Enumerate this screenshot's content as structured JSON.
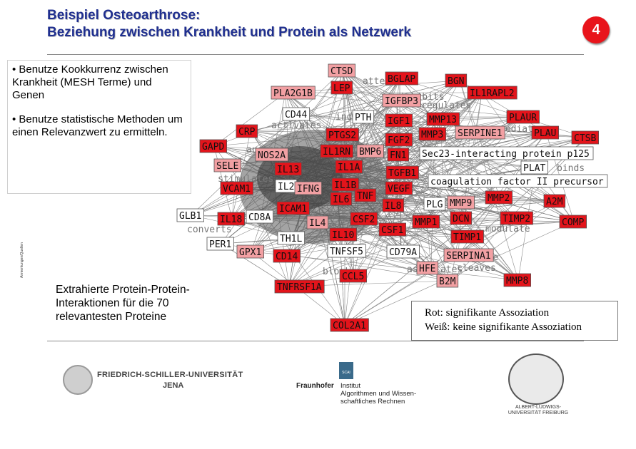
{
  "title": {
    "line1": "Beispiel Osteoarthrose:",
    "line2": "Beziehung zwischen Krankheit und Protein als Netzwerk"
  },
  "slide_number": "4",
  "bullets": [
    "• Benutze Kookkurrenz zwischen Krankheit (MESH Terme) und Genen",
    "• Benutze statistische Methoden um einen Relevanzwert zu ermitteln."
  ],
  "side_note": "Anmerkungen/Quellen",
  "extract_text": [
    "Extrahierte Protein-Protein-",
    "Interaktionen für die 70",
    "relevantesten Proteine"
  ],
  "legend": {
    "red": "Rot: signifikante Assoziation",
    "white": "Weiß: keine signifikante Assoziation"
  },
  "colors": {
    "title": "#1f2f8f",
    "badge": "#e8141b",
    "node_red": "#e3141b",
    "node_light": "#f2a0a3",
    "node_white": "#ffffff"
  },
  "network": {
    "nodes": [
      {
        "label": "CTSD",
        "color": "light"
      },
      {
        "label": "BGLAP",
        "color": "red"
      },
      {
        "label": "BGN",
        "color": "red"
      },
      {
        "label": "PLA2G1B",
        "color": "light"
      },
      {
        "label": "LEP",
        "color": "red"
      },
      {
        "label": "IGFBP3",
        "color": "light"
      },
      {
        "label": "IL1RAPL2",
        "color": "red"
      },
      {
        "label": "CD44",
        "color": "white"
      },
      {
        "label": "PTH",
        "color": "white"
      },
      {
        "label": "IGF1",
        "color": "red"
      },
      {
        "label": "MMP13",
        "color": "red"
      },
      {
        "label": "PLAUR",
        "color": "red"
      },
      {
        "label": "CRP",
        "color": "red"
      },
      {
        "label": "PTGS2",
        "color": "red"
      },
      {
        "label": "FGF2",
        "color": "red"
      },
      {
        "label": "MMP3",
        "color": "red"
      },
      {
        "label": "SERPINE1",
        "color": "light"
      },
      {
        "label": "PLAU",
        "color": "red"
      },
      {
        "label": "CTSB",
        "color": "red"
      },
      {
        "label": "GAPD",
        "color": "red"
      },
      {
        "label": "NOS2A",
        "color": "light"
      },
      {
        "label": "IL1RN",
        "color": "red"
      },
      {
        "label": "BMP6",
        "color": "light"
      },
      {
        "label": "FN1",
        "color": "red"
      },
      {
        "label": "Sec23-interacting protein p125",
        "color": "white"
      },
      {
        "label": "SELE",
        "color": "light"
      },
      {
        "label": "IL13",
        "color": "red"
      },
      {
        "label": "IL1A",
        "color": "red"
      },
      {
        "label": "TGFB1",
        "color": "red"
      },
      {
        "label": "PLAT",
        "color": "white"
      },
      {
        "label": "coagulation factor II precursor",
        "color": "white"
      },
      {
        "label": "VCAM1",
        "color": "red"
      },
      {
        "label": "IL2",
        "color": "white"
      },
      {
        "label": "IFNG",
        "color": "light"
      },
      {
        "label": "IL1B",
        "color": "red"
      },
      {
        "label": "IL6",
        "color": "red"
      },
      {
        "label": "TNF",
        "color": "red"
      },
      {
        "label": "VEGF",
        "color": "red"
      },
      {
        "label": "MMP2",
        "color": "red"
      },
      {
        "label": "A2M",
        "color": "red"
      },
      {
        "label": "ICAM1",
        "color": "red"
      },
      {
        "label": "IL8",
        "color": "red"
      },
      {
        "label": "PLG",
        "color": "white"
      },
      {
        "label": "MMP9",
        "color": "light"
      },
      {
        "label": "GLB1",
        "color": "white"
      },
      {
        "label": "IL18",
        "color": "red"
      },
      {
        "label": "CD8A",
        "color": "white"
      },
      {
        "label": "IL4",
        "color": "light"
      },
      {
        "label": "CSF2",
        "color": "red"
      },
      {
        "label": "MMP1",
        "color": "red"
      },
      {
        "label": "DCN",
        "color": "red"
      },
      {
        "label": "TIMP2",
        "color": "red"
      },
      {
        "label": "COMP",
        "color": "red"
      },
      {
        "label": "TH1L",
        "color": "white"
      },
      {
        "label": "CSF1",
        "color": "red"
      },
      {
        "label": "TIMP1",
        "color": "red"
      },
      {
        "label": "PER1",
        "color": "white"
      },
      {
        "label": "IL10",
        "color": "red"
      },
      {
        "label": "GPX1",
        "color": "light"
      },
      {
        "label": "CD14",
        "color": "red"
      },
      {
        "label": "TNFSF5",
        "color": "white"
      },
      {
        "label": "CD79A",
        "color": "white"
      },
      {
        "label": "SERPINA1",
        "color": "light"
      },
      {
        "label": "HFE",
        "color": "light"
      },
      {
        "label": "CCL5",
        "color": "red"
      },
      {
        "label": "B2M",
        "color": "light"
      },
      {
        "label": "MMP8",
        "color": "red"
      },
      {
        "label": "TNFRSF1A",
        "color": "red"
      },
      {
        "label": "COL2A1",
        "color": "red"
      }
    ],
    "edge_words": [
      {
        "label": "attenuates"
      },
      {
        "label": "regulates"
      },
      {
        "label": "induces"
      },
      {
        "label": "stimulates"
      },
      {
        "label": "activates"
      },
      {
        "label": "augments"
      },
      {
        "label": "mediates"
      },
      {
        "label": "binds"
      },
      {
        "label": "inhibits"
      },
      {
        "label": "converts"
      },
      {
        "label": "modulate"
      },
      {
        "label": "blocks"
      },
      {
        "label": "associates"
      },
      {
        "label": "cleaves"
      },
      {
        "label": "recognize"
      }
    ]
  },
  "logos": {
    "jena_name": "FRIEDRICH-SCHILLER-UNIVERSITÄT",
    "jena_city": "JENA",
    "fraunhofer": "Fraunhofer",
    "scai": "SCAI",
    "fraunhofer_l1": "Institut",
    "fraunhofer_l2": "Algorithmen und Wissen-",
    "fraunhofer_l3": "schaftliches Rechnen",
    "freiburg_l1": "ALBERT-LUDWIGS-",
    "freiburg_l2": "UNIVERSITÄT FREIBURG"
  }
}
